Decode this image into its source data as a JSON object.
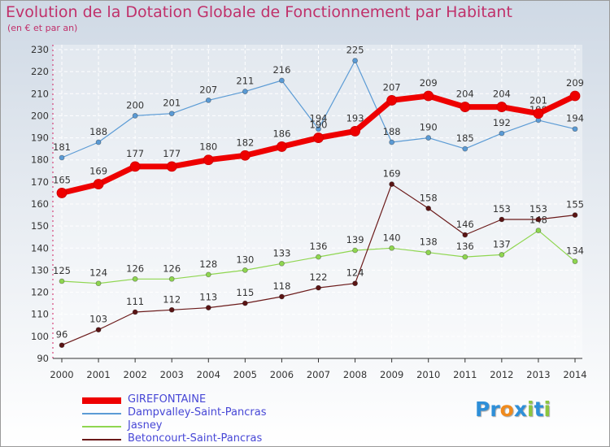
{
  "title": "Evolution de la Dotation Globale de Fonctionnement par Habitant",
  "subtitle": "(en € et par an)",
  "chart_data": {
    "type": "line",
    "title": "Evolution de la Dotation Globale de Fonctionnement par Habitant",
    "subtitle": "(en € et par an)",
    "x": [
      2000,
      2001,
      2002,
      2003,
      2004,
      2005,
      2006,
      2007,
      2008,
      2009,
      2010,
      2011,
      2012,
      2013,
      2014
    ],
    "ylim": [
      90,
      230
    ],
    "yticks": [
      90,
      100,
      110,
      120,
      130,
      140,
      150,
      160,
      170,
      180,
      190,
      200,
      210,
      220,
      230
    ],
    "grid": true,
    "legend": "bottom-left",
    "series": [
      {
        "name": "Dampvalley-Saint-Pancras",
        "color": "#5b9bd5",
        "width": 1.2,
        "marker": "#5b9bd5",
        "values": [
          181,
          188,
          200,
          201,
          207,
          211,
          216,
          194,
          225,
          188,
          190,
          185,
          192,
          198,
          194
        ]
      },
      {
        "name": "Jasney",
        "color": "#8fd650",
        "width": 1.2,
        "marker": "#8fd650",
        "values": [
          125,
          124,
          126,
          126,
          128,
          130,
          133,
          136,
          139,
          140,
          138,
          136,
          137,
          148,
          134
        ]
      },
      {
        "name": "Betoncourt-Saint-Pancras",
        "color": "#6b1a1a",
        "width": 1.2,
        "marker": "#5a1414",
        "values": [
          96,
          103,
          111,
          112,
          113,
          115,
          118,
          122,
          124,
          169,
          158,
          146,
          153,
          153,
          155
        ]
      },
      {
        "name": "GIREFONTAINE",
        "color": "#ee0000",
        "width": 7,
        "marker": "#ee0000",
        "values": [
          165,
          169,
          177,
          177,
          180,
          182,
          186,
          190,
          193,
          207,
          209,
          204,
          204,
          201,
          209
        ]
      }
    ],
    "legend_order": [
      "GIREFONTAINE",
      "Dampvalley-Saint-Pancras",
      "Jasney",
      "Betoncourt-Saint-Pancras"
    ]
  },
  "logo": {
    "letters": [
      {
        "ch": "P",
        "color": "#2e8fd8"
      },
      {
        "ch": "r",
        "color": "#2e8fd8"
      },
      {
        "ch": "o",
        "color": "#f08a1c"
      },
      {
        "ch": "x",
        "color": "#2e8fd8"
      },
      {
        "ch": "i",
        "color": "#8cc63f"
      },
      {
        "ch": "t",
        "color": "#2e8fd8"
      },
      {
        "ch": "i",
        "color": "#8cc63f"
      }
    ]
  }
}
